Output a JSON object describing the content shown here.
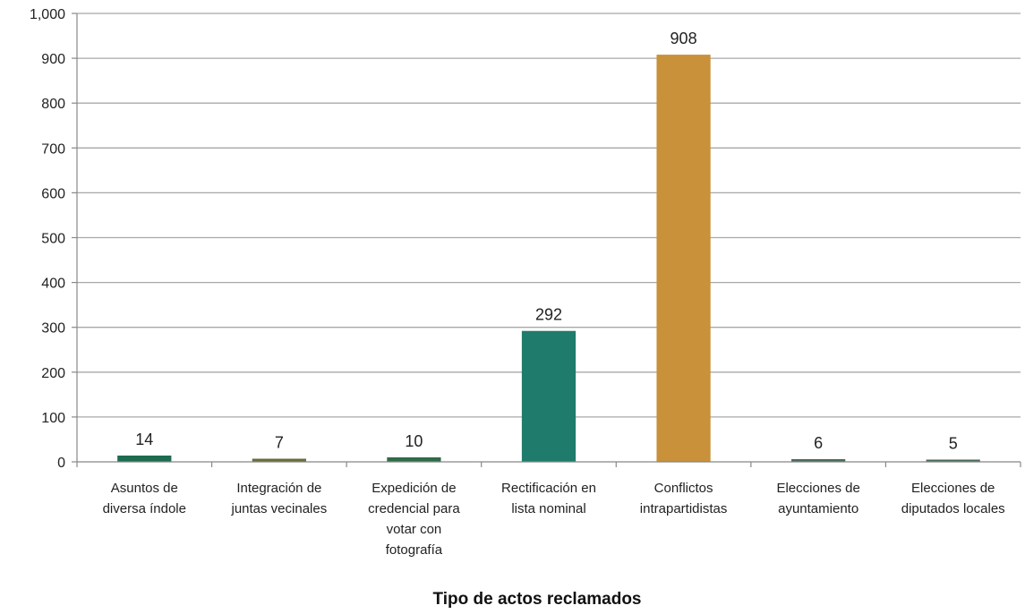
{
  "chart_data": {
    "type": "bar",
    "title": "",
    "xlabel": "Tipo de actos reclamados",
    "ylabel": "",
    "ylim": [
      0,
      1000
    ],
    "yticks": [
      0,
      100,
      200,
      300,
      400,
      500,
      600,
      700,
      800,
      900,
      1000
    ],
    "ytick_labels": [
      "0",
      "100",
      "200",
      "300",
      "400",
      "500",
      "600",
      "700",
      "800",
      "900",
      "1,000"
    ],
    "grid": true,
    "legend": "none",
    "categories": [
      [
        "Asuntos de",
        "diversa índole"
      ],
      [
        "Integración de",
        "juntas vecinales"
      ],
      [
        "Expedición de",
        "credencial para",
        "votar con",
        "fotografía"
      ],
      [
        "Rectificación en",
        "lista nominal"
      ],
      [
        "Conflictos",
        "intrapartidistas"
      ],
      [
        "Elecciones de",
        "ayuntamiento"
      ],
      [
        "Elecciones de",
        "diputados locales"
      ]
    ],
    "values": [
      14,
      7,
      10,
      292,
      908,
      6,
      5
    ],
    "data_labels": [
      "14",
      "7",
      "10",
      "292",
      "908",
      "6",
      "5"
    ],
    "colors": [
      "#1e6b4f",
      "#6b6b3a",
      "#2f6b48",
      "#1f7b6b",
      "#c8913a",
      "#4a6b5a",
      "#4a6b5a"
    ]
  }
}
